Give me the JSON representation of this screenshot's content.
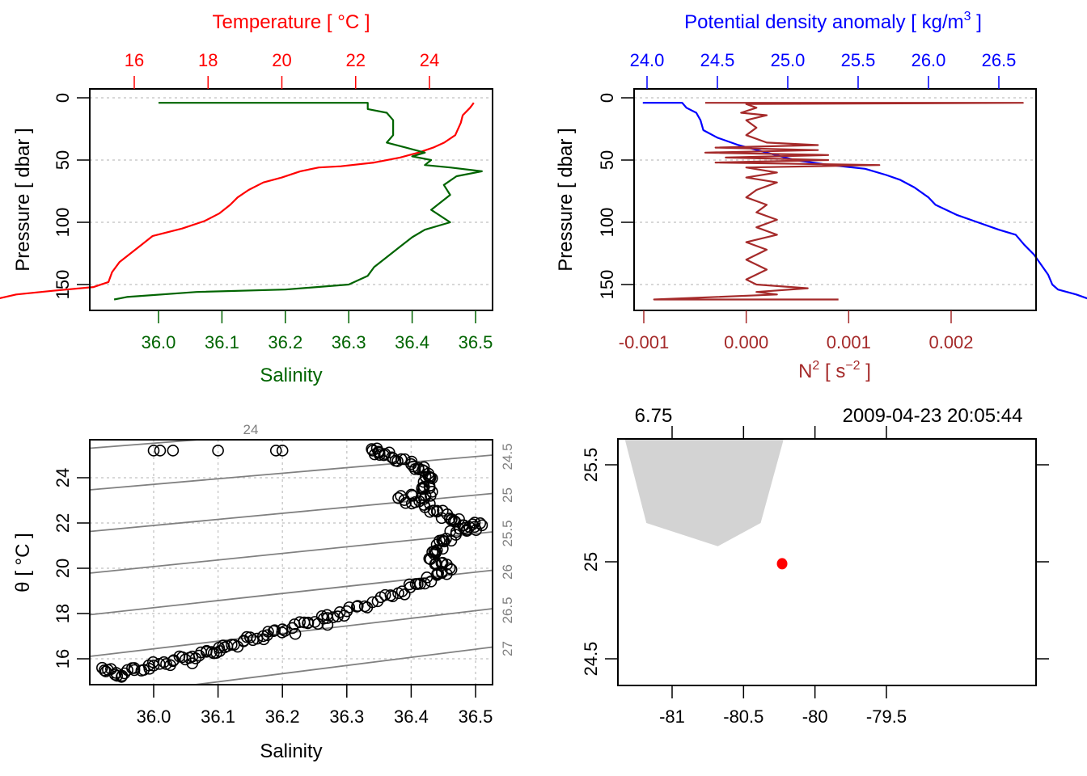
{
  "chart_data": [
    {
      "id": "profile-ts",
      "type": "line",
      "title": "",
      "top_axis_label": "Temperature [ °C ]",
      "top_axis_color": "#ff0000",
      "top_ticks": [
        "16",
        "18",
        "20",
        "22",
        "24"
      ],
      "top_tick_values": [
        16,
        18,
        20,
        22,
        24
      ],
      "bottom_axis_label": "Salinity",
      "bottom_axis_color": "#006400",
      "bottom_ticks": [
        "36.0",
        "36.1",
        "36.2",
        "36.3",
        "36.4",
        "36.5"
      ],
      "bottom_tick_values": [
        36.0,
        36.1,
        36.2,
        36.3,
        36.4,
        36.5
      ],
      "ylabel": "Pressure [ dbar ]",
      "y_ticks": [
        "0",
        "50",
        "100",
        "150"
      ],
      "y_tick_values": [
        0,
        50,
        100,
        150
      ],
      "ylim": [
        170,
        -7
      ],
      "grid": "horizontal-dotted",
      "series": [
        {
          "name": "Temperature",
          "color": "#ff0000",
          "x_axis": "top",
          "points": [
            [
              25.2,
              4
            ],
            [
              25.1,
              8
            ],
            [
              24.9,
              14
            ],
            [
              24.85,
              20
            ],
            [
              24.7,
              30
            ],
            [
              24.4,
              36
            ],
            [
              24.1,
              40
            ],
            [
              23.7,
              44
            ],
            [
              23.2,
              48
            ],
            [
              22.5,
              52
            ],
            [
              21.6,
              55
            ],
            [
              21.0,
              56
            ],
            [
              20.5,
              59
            ],
            [
              20.0,
              64
            ],
            [
              19.5,
              68
            ],
            [
              19.1,
              74
            ],
            [
              18.8,
              80
            ],
            [
              18.6,
              86
            ],
            [
              18.3,
              93
            ],
            [
              17.9,
              99
            ],
            [
              17.3,
              105
            ],
            [
              16.5,
              111
            ],
            [
              16.2,
              118
            ],
            [
              15.9,
              125
            ],
            [
              15.6,
              132
            ],
            [
              15.4,
              140
            ],
            [
              15.3,
              148
            ],
            [
              14.9,
              152
            ],
            [
              13.8,
              155
            ],
            [
              12.8,
              158
            ],
            [
              12.2,
              162
            ]
          ]
        },
        {
          "name": "Salinity",
          "color": "#006400",
          "x_axis": "bottom",
          "points": [
            [
              36.0,
              4
            ],
            [
              36.33,
              4
            ],
            [
              36.33,
              9
            ],
            [
              36.36,
              12
            ],
            [
              36.37,
              18
            ],
            [
              36.37,
              30
            ],
            [
              36.36,
              36
            ],
            [
              36.39,
              40
            ],
            [
              36.42,
              44
            ],
            [
              36.4,
              47
            ],
            [
              36.43,
              50
            ],
            [
              36.42,
              54
            ],
            [
              36.46,
              56
            ],
            [
              36.51,
              59
            ],
            [
              36.47,
              63
            ],
            [
              36.45,
              70
            ],
            [
              36.46,
              78
            ],
            [
              36.44,
              86
            ],
            [
              36.43,
              90
            ],
            [
              36.46,
              100
            ],
            [
              36.42,
              106
            ],
            [
              36.4,
              112
            ],
            [
              36.38,
              120
            ],
            [
              36.36,
              128
            ],
            [
              36.34,
              136
            ],
            [
              36.33,
              143
            ],
            [
              36.3,
              150
            ],
            [
              36.2,
              154
            ],
            [
              36.06,
              156
            ],
            [
              35.95,
              160
            ],
            [
              35.93,
              162
            ]
          ]
        }
      ]
    },
    {
      "id": "profile-density-n2",
      "type": "line",
      "title": "",
      "top_axis_label": "Potential density anomaly [ kg/m",
      "top_axis_label_sup": "3",
      "top_axis_label_end": " ]",
      "top_axis_color": "#0000ff",
      "top_ticks": [
        "24.0",
        "24.5",
        "25.0",
        "25.5",
        "26.0",
        "26.5"
      ],
      "top_tick_values": [
        24.0,
        24.5,
        25.0,
        25.5,
        26.0,
        26.5
      ],
      "bottom_axis_label": "N",
      "bottom_axis_label_sup": "2",
      "bottom_axis_label_mid": " [ s",
      "bottom_axis_label_sup2": "−2",
      "bottom_axis_label_end": " ]",
      "bottom_axis_color": "#a52a2a",
      "bottom_ticks": [
        "-0.001",
        "0.000",
        "0.001",
        "0.002"
      ],
      "bottom_tick_values": [
        -0.001,
        0.0,
        0.001,
        0.002
      ],
      "ylabel": "Pressure [ dbar ]",
      "y_ticks": [
        "0",
        "50",
        "100",
        "150"
      ],
      "y_tick_values": [
        0,
        50,
        100,
        150
      ],
      "ylim": [
        170,
        -7
      ],
      "grid": "horizontal-dotted",
      "series": [
        {
          "name": "Potential density anomaly",
          "color": "#0000ff",
          "x_axis": "top",
          "points": [
            [
              23.97,
              4
            ],
            [
              24.25,
              4
            ],
            [
              24.28,
              8
            ],
            [
              24.35,
              12
            ],
            [
              24.38,
              18
            ],
            [
              24.4,
              26
            ],
            [
              24.5,
              32
            ],
            [
              24.65,
              38
            ],
            [
              24.85,
              44
            ],
            [
              25.05,
              50
            ],
            [
              25.3,
              54
            ],
            [
              25.55,
              57
            ],
            [
              25.7,
              62
            ],
            [
              25.8,
              66
            ],
            [
              25.9,
              72
            ],
            [
              26.0,
              80
            ],
            [
              26.05,
              86
            ],
            [
              26.2,
              94
            ],
            [
              26.35,
              100
            ],
            [
              26.5,
              106
            ],
            [
              26.62,
              110
            ],
            [
              26.68,
              118
            ],
            [
              26.75,
              126
            ],
            [
              26.8,
              134
            ],
            [
              26.85,
              142
            ],
            [
              26.88,
              150
            ],
            [
              26.92,
              154
            ],
            [
              27.05,
              158
            ],
            [
              27.15,
              162
            ]
          ]
        },
        {
          "name": "N2",
          "color": "#a52a2a",
          "x_axis": "bottom",
          "points": [
            [
              -0.0004,
              4
            ],
            [
              0.0027,
              4
            ],
            [
              0.0,
              5
            ],
            [
              0.0001,
              8
            ],
            [
              -5e-05,
              12
            ],
            [
              0.0002,
              14
            ],
            [
              0.0,
              18
            ],
            [
              0.0001,
              24
            ],
            [
              0.0,
              30
            ],
            [
              0.0002,
              36
            ],
            [
              0.0007,
              38
            ],
            [
              -0.0003,
              40
            ],
            [
              0.0007,
              42
            ],
            [
              -0.0004,
              44
            ],
            [
              0.0008,
              46
            ],
            [
              -0.0002,
              48
            ],
            [
              0.0008,
              50
            ],
            [
              -0.0003,
              52
            ],
            [
              0.0013,
              54
            ],
            [
              0.0,
              56
            ],
            [
              0.0003,
              60
            ],
            [
              0.0,
              64
            ],
            [
              0.0003,
              68
            ],
            [
              0.0001,
              74
            ],
            [
              0.0,
              80
            ],
            [
              0.0002,
              86
            ],
            [
              0.0001,
              92
            ],
            [
              0.0003,
              98
            ],
            [
              0.0001,
              104
            ],
            [
              0.0003,
              110
            ],
            [
              0.0,
              116
            ],
            [
              0.0002,
              122
            ],
            [
              0.0,
              130
            ],
            [
              0.0002,
              138
            ],
            [
              0.0,
              146
            ],
            [
              0.0001,
              150
            ],
            [
              0.0006,
              153
            ],
            [
              0.0001,
              156
            ],
            [
              0.0003,
              158
            ],
            [
              -0.0009,
              162
            ],
            [
              0.0009,
              162
            ]
          ]
        }
      ]
    },
    {
      "id": "ts-diagram",
      "type": "scatter",
      "xlabel": "Salinity",
      "ylabel": "θ [ °C ]",
      "x_ticks": [
        "36.0",
        "36.1",
        "36.2",
        "36.3",
        "36.4",
        "36.5"
      ],
      "x_tick_values": [
        36.0,
        36.1,
        36.2,
        36.3,
        36.4,
        36.5
      ],
      "y_ticks": [
        "16",
        "18",
        "20",
        "22",
        "24"
      ],
      "y_tick_values": [
        16,
        18,
        20,
        22,
        24
      ],
      "xlim": [
        35.9,
        36.53
      ],
      "ylim": [
        14.9,
        25.6
      ],
      "grid": "dotted",
      "isopycnal_color": "#808080",
      "isopycnal_labels": [
        "24",
        "24.5",
        "25",
        "25.5",
        "26",
        "26.5",
        "27"
      ],
      "isopycnal_values": [
        24,
        24.5,
        25,
        25.5,
        26,
        26.5,
        27
      ],
      "points": [
        [
          36.0,
          25.2
        ],
        [
          36.01,
          25.2
        ],
        [
          36.03,
          25.2
        ],
        [
          36.1,
          25.2
        ],
        [
          36.19,
          25.2
        ],
        [
          36.2,
          25.2
        ],
        [
          36.34,
          25.2
        ],
        [
          36.35,
          25.1
        ],
        [
          36.37,
          24.9
        ],
        [
          36.4,
          24.6
        ],
        [
          36.42,
          24.3
        ],
        [
          36.43,
          24.0
        ],
        [
          36.42,
          23.6
        ],
        [
          36.43,
          23.2
        ],
        [
          36.38,
          23.1
        ],
        [
          36.42,
          22.8
        ],
        [
          36.44,
          22.5
        ],
        [
          36.46,
          22.2
        ],
        [
          36.48,
          21.9
        ],
        [
          36.51,
          21.9
        ],
        [
          36.47,
          21.6
        ],
        [
          36.45,
          21.2
        ],
        [
          36.44,
          20.8
        ],
        [
          36.43,
          20.4
        ],
        [
          36.46,
          20.0
        ],
        [
          36.44,
          19.7
        ],
        [
          36.41,
          19.3
        ],
        [
          36.38,
          18.9
        ],
        [
          36.34,
          18.5
        ],
        [
          36.3,
          18.1
        ],
        [
          36.27,
          17.8
        ],
        [
          36.24,
          17.6
        ],
        [
          36.2,
          17.3
        ],
        [
          36.17,
          17.0
        ],
        [
          36.14,
          16.8
        ],
        [
          36.11,
          16.5
        ],
        [
          36.09,
          16.3
        ],
        [
          36.06,
          16.1
        ],
        [
          36.03,
          15.9
        ],
        [
          36.0,
          15.7
        ],
        [
          35.97,
          15.5
        ],
        [
          35.94,
          15.3
        ],
        [
          35.92,
          15.6
        ],
        [
          35.95,
          15.2
        ],
        [
          36.06,
          15.8
        ],
        [
          36.22,
          17.1
        ],
        [
          36.27,
          17.5
        ]
      ]
    },
    {
      "id": "station-map",
      "type": "scatter",
      "top_label_left": "6.75",
      "top_label_right": "2009-04-23 20:05:44",
      "x_ticks": [
        "-81",
        "-80.5",
        "-80",
        "-79.5"
      ],
      "x_tick_values": [
        -81,
        -80.5,
        -80,
        -79.5
      ],
      "y_ticks": [
        "24.5",
        "25",
        "25.5"
      ],
      "y_tick_values": [
        24.5,
        25,
        25.5
      ],
      "xlim": [
        -81.38,
        -79.42
      ],
      "ylim": [
        24.36,
        25.63
      ],
      "land_color": "#d3d3d3",
      "land_polygon": [
        [
          -81.33,
          25.63
        ],
        [
          -81.18,
          25.2
        ],
        [
          -80.68,
          25.08
        ],
        [
          -80.38,
          25.2
        ],
        [
          -80.22,
          25.63
        ]
      ],
      "station": {
        "lon": -80.23,
        "lat": 24.99,
        "color": "#ff0000"
      }
    }
  ]
}
